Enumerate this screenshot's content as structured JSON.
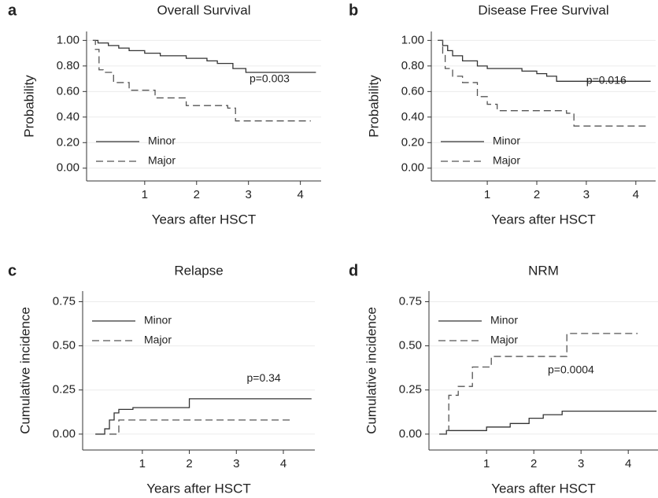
{
  "chart_data": [
    {
      "type": "line",
      "step": true,
      "panel_label": "a",
      "title": "Overall Survival",
      "xlabel": "Years after HSCT",
      "ylabel": "Probability",
      "xlim": [
        -0.12,
        4.4
      ],
      "ylim": [
        -0.1,
        1.07
      ],
      "xticks": [
        1,
        2,
        3,
        4
      ],
      "yticks": [
        {
          "value": 0,
          "label": "0.00"
        },
        {
          "value": 0.2,
          "label": "0.20"
        },
        {
          "value": 0.4,
          "label": "0.40"
        },
        {
          "value": 0.6,
          "label": "0.60"
        },
        {
          "value": 0.8,
          "label": "0.80"
        },
        {
          "value": 1,
          "label": "1.00"
        }
      ],
      "grid": true,
      "legend": "lower left",
      "annotation": "p=0.003",
      "series": [
        {
          "name": "Minor",
          "color": "#333333",
          "line_style": "solid",
          "x": [
            0,
            0.1,
            0.3,
            0.5,
            0.7,
            1.0,
            1.3,
            1.8,
            2.2,
            2.4,
            2.7,
            2.95,
            4.3
          ],
          "values": [
            1.0,
            0.98,
            0.96,
            0.94,
            0.92,
            0.9,
            0.88,
            0.86,
            0.84,
            0.82,
            0.78,
            0.75,
            0.75
          ]
        },
        {
          "name": "Major",
          "color": "#555555",
          "line_style": "dashed",
          "x": [
            0,
            0.05,
            0.12,
            0.2,
            0.4,
            0.7,
            1.2,
            1.8,
            2.6,
            2.75,
            4.2
          ],
          "values": [
            1.0,
            0.93,
            0.77,
            0.75,
            0.67,
            0.61,
            0.55,
            0.49,
            0.47,
            0.37,
            0.37
          ]
        }
      ]
    },
    {
      "type": "line",
      "step": true,
      "panel_label": "b",
      "title": "Disease Free Survival",
      "xlabel": "Years after HSCT",
      "ylabel": "Probability",
      "xlim": [
        -0.13,
        4.4
      ],
      "ylim": [
        -0.1,
        1.07
      ],
      "xticks": [
        1,
        2,
        3,
        4
      ],
      "yticks": [
        {
          "value": 0,
          "label": "0.00"
        },
        {
          "value": 0.2,
          "label": "0.20"
        },
        {
          "value": 0.4,
          "label": "0.40"
        },
        {
          "value": 0.6,
          "label": "0.60"
        },
        {
          "value": 0.8,
          "label": "0.80"
        },
        {
          "value": 1,
          "label": "1.00"
        }
      ],
      "grid": true,
      "legend": "lower left",
      "annotation": "p=0.016",
      "series": [
        {
          "name": "Minor",
          "color": "#333333",
          "line_style": "solid",
          "x": [
            0,
            0.1,
            0.2,
            0.3,
            0.5,
            0.8,
            1.0,
            1.7,
            2.0,
            2.2,
            2.4,
            4.3
          ],
          "values": [
            1.0,
            0.96,
            0.92,
            0.88,
            0.84,
            0.8,
            0.78,
            0.76,
            0.74,
            0.72,
            0.68,
            0.68
          ]
        },
        {
          "name": "Major",
          "color": "#555555",
          "line_style": "dashed",
          "x": [
            0,
            0.1,
            0.15,
            0.3,
            0.5,
            0.8,
            1.0,
            1.2,
            2.6,
            2.75,
            4.2
          ],
          "values": [
            1.0,
            0.9,
            0.78,
            0.72,
            0.67,
            0.56,
            0.5,
            0.45,
            0.43,
            0.33,
            0.33
          ]
        }
      ]
    },
    {
      "type": "line",
      "step": true,
      "panel_label": "c",
      "title": "Relapse",
      "xlabel": "Years after HSCT",
      "ylabel": "Cumulative incidence",
      "xlim": [
        -0.27,
        4.67
      ],
      "ylim": [
        -0.09,
        0.81
      ],
      "xticks": [
        1,
        2,
        3,
        4
      ],
      "yticks": [
        {
          "value": 0,
          "label": "0.00"
        },
        {
          "value": 0.25,
          "label": "0.25"
        },
        {
          "value": 0.5,
          "label": "0.50"
        },
        {
          "value": 0.75,
          "label": "0.75"
        }
      ],
      "grid": true,
      "legend": "upper left",
      "annotation": "p=0.34",
      "series": [
        {
          "name": "Minor",
          "color": "#333333",
          "line_style": "solid",
          "x": [
            0,
            0.2,
            0.3,
            0.4,
            0.5,
            0.8,
            2.0,
            4.6
          ],
          "values": [
            0,
            0.03,
            0.08,
            0.12,
            0.14,
            0.15,
            0.2,
            0.2
          ]
        },
        {
          "name": "Major",
          "color": "#555555",
          "line_style": "dashed",
          "x": [
            0.3,
            0.5,
            4.2
          ],
          "values": [
            0,
            0.08,
            0.08
          ]
        }
      ]
    },
    {
      "type": "line",
      "step": true,
      "panel_label": "d",
      "title": "NRM",
      "xlabel": "Years after HSCT",
      "ylabel": "Cumulative incidence",
      "xlim": [
        -0.22,
        4.63
      ],
      "ylim": [
        -0.09,
        0.81
      ],
      "xticks": [
        1,
        2,
        3,
        4
      ],
      "yticks": [
        {
          "value": 0,
          "label": "0.00"
        },
        {
          "value": 0.25,
          "label": "0.25"
        },
        {
          "value": 0.5,
          "label": "0.50"
        },
        {
          "value": 0.75,
          "label": "0.75"
        }
      ],
      "grid": true,
      "legend": "upper left",
      "annotation": "p=0.0004",
      "series": [
        {
          "name": "Minor",
          "color": "#333333",
          "line_style": "solid",
          "x": [
            0,
            0.15,
            1.0,
            1.5,
            1.9,
            2.2,
            2.6,
            4.6
          ],
          "values": [
            0,
            0.02,
            0.04,
            0.06,
            0.09,
            0.11,
            0.13,
            0.13
          ]
        },
        {
          "name": "Major",
          "color": "#555555",
          "line_style": "dashed",
          "x": [
            0,
            0.15,
            0.2,
            0.4,
            0.7,
            1.1,
            2.7,
            4.2
          ],
          "values": [
            0,
            0.02,
            0.22,
            0.27,
            0.38,
            0.44,
            0.57,
            0.57
          ]
        }
      ]
    }
  ]
}
